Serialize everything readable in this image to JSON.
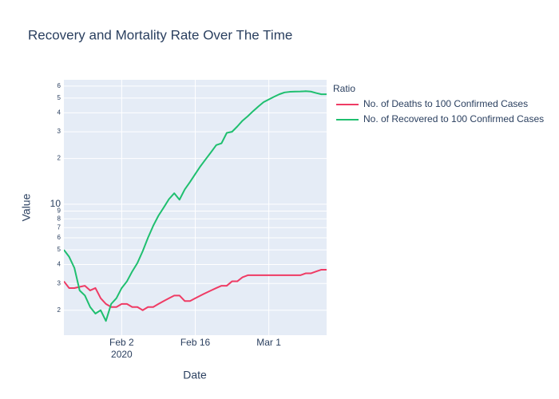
{
  "chart_data": {
    "type": "line",
    "title": "Recovery and Mortality Rate Over The Time",
    "x_label": "Date",
    "y_label": "Value",
    "legend_title": "Ratio",
    "legend_position": "right",
    "log_y": true,
    "grid": true,
    "x": [
      "2020-01-22",
      "2020-01-23",
      "2020-01-24",
      "2020-01-25",
      "2020-01-26",
      "2020-01-27",
      "2020-01-28",
      "2020-01-29",
      "2020-01-30",
      "2020-01-31",
      "2020-02-01",
      "2020-02-02",
      "2020-02-03",
      "2020-02-04",
      "2020-02-05",
      "2020-02-06",
      "2020-02-07",
      "2020-02-08",
      "2020-02-09",
      "2020-02-10",
      "2020-02-11",
      "2020-02-12",
      "2020-02-13",
      "2020-02-14",
      "2020-02-15",
      "2020-02-16",
      "2020-02-17",
      "2020-02-18",
      "2020-02-19",
      "2020-02-20",
      "2020-02-21",
      "2020-02-22",
      "2020-02-23",
      "2020-02-24",
      "2020-02-25",
      "2020-02-26",
      "2020-02-27",
      "2020-02-28",
      "2020-02-29",
      "2020-03-01",
      "2020-03-02",
      "2020-03-03",
      "2020-03-04",
      "2020-03-05",
      "2020-03-06",
      "2020-03-07",
      "2020-03-08",
      "2020-03-09",
      "2020-03-10",
      "2020-03-11",
      "2020-03-12"
    ],
    "xlim": [
      "2020-01-22",
      "2020-03-12"
    ],
    "xticks": [
      {
        "value": "2020-02-02",
        "label": "Feb 2"
      },
      {
        "value": "2020-02-16",
        "label": "Feb 16"
      },
      {
        "value": "2020-03-01",
        "label": "Mar 1"
      }
    ],
    "x_year_label": "2020",
    "ylim": [
      1.37,
      66
    ],
    "yticks": [
      2,
      3,
      4,
      5,
      6,
      7,
      8,
      9,
      10,
      {
        "value": 20,
        "label": "2"
      },
      {
        "value": 30,
        "label": "3"
      },
      {
        "value": 40,
        "label": "4"
      },
      {
        "value": 50,
        "label": "5"
      },
      {
        "value": 60,
        "label": "6"
      }
    ],
    "series": [
      {
        "name": "No. of Deaths to 100 Confirmed Cases",
        "color": "#ef3b64",
        "values": [
          3.1,
          2.8,
          2.8,
          2.85,
          2.9,
          2.7,
          2.8,
          2.4,
          2.2,
          2.1,
          2.1,
          2.2,
          2.2,
          2.1,
          2.1,
          2.0,
          2.1,
          2.1,
          2.2,
          2.3,
          2.4,
          2.5,
          2.5,
          2.3,
          2.3,
          2.4,
          2.5,
          2.6,
          2.7,
          2.8,
          2.9,
          2.9,
          3.1,
          3.1,
          3.3,
          3.4,
          3.4,
          3.4,
          3.4,
          3.4,
          3.4,
          3.4,
          3.4,
          3.4,
          3.4,
          3.4,
          3.5,
          3.5,
          3.6,
          3.7,
          3.7
        ]
      },
      {
        "name": "No. of Recovered to 100 Confirmed Cases",
        "color": "#1fbf6f",
        "values": [
          5.0,
          4.5,
          3.8,
          2.7,
          2.5,
          2.1,
          1.9,
          2.0,
          1.7,
          2.2,
          2.4,
          2.8,
          3.1,
          3.6,
          4.1,
          4.9,
          6.0,
          7.2,
          8.4,
          9.5,
          10.8,
          11.8,
          10.7,
          12.5,
          14.0,
          15.8,
          17.8,
          19.8,
          22,
          24.5,
          25.2,
          29.5,
          30,
          32.5,
          35.5,
          38,
          41,
          44,
          47,
          49,
          51,
          53,
          54.5,
          55,
          55.2,
          55.3,
          55.5,
          55.2,
          54,
          53,
          53
        ]
      }
    ]
  }
}
